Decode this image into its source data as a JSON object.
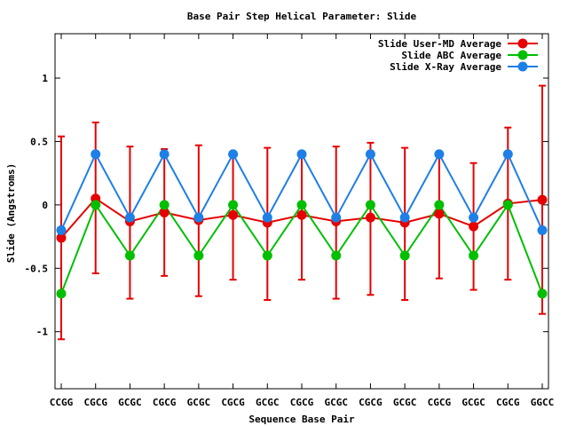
{
  "chart_data": {
    "type": "line",
    "title": "Base Pair Step Helical Parameter: Slide",
    "xlabel": "Sequence Base Pair",
    "ylabel": "Slide (Angstroms)",
    "ylim": [
      -1.45,
      1.35
    ],
    "yticks": [
      1,
      0.5,
      0,
      -0.5,
      -1
    ],
    "ytick_labels": [
      "1",
      "0.5",
      "0",
      "-0.5",
      "-1"
    ],
    "categories": [
      "CCGG",
      "CGCG",
      "GCGC",
      "CGCG",
      "GCGC",
      "CGCG",
      "GCGC",
      "CGCG",
      "GCGC",
      "CGCG",
      "GCGC",
      "CGCG",
      "GCGC",
      "CGCG",
      "GGCC"
    ],
    "grid": false,
    "legend_position": "top-right",
    "series": [
      {
        "name": "Slide User-MD Average",
        "color": "#e60000",
        "values": [
          -0.26,
          0.05,
          -0.13,
          -0.06,
          -0.12,
          -0.08,
          -0.14,
          -0.08,
          -0.13,
          -0.1,
          -0.14,
          -0.07,
          -0.17,
          0.01,
          0.04
        ],
        "err_low": [
          -1.06,
          -0.54,
          -0.74,
          -0.56,
          -0.72,
          -0.59,
          -0.75,
          -0.59,
          -0.74,
          -0.71,
          -0.75,
          -0.58,
          -0.67,
          -0.59,
          -0.86
        ],
        "err_high": [
          0.54,
          0.65,
          0.46,
          0.44,
          0.47,
          0.41,
          0.45,
          0.41,
          0.46,
          0.49,
          0.45,
          0.41,
          0.33,
          0.61,
          0.94
        ]
      },
      {
        "name": "Slide ABC Average",
        "color": "#00bf00",
        "values": [
          -0.7,
          0.0,
          -0.4,
          0.0,
          -0.4,
          0.0,
          -0.4,
          0.0,
          -0.4,
          0.0,
          -0.4,
          0.0,
          -0.4,
          0.0,
          -0.7
        ]
      },
      {
        "name": "Slide X-Ray Average",
        "color": "#1e7fe6",
        "values": [
          -0.2,
          0.4,
          -0.1,
          0.4,
          -0.1,
          0.4,
          -0.1,
          0.4,
          -0.1,
          0.4,
          -0.1,
          0.4,
          -0.1,
          0.4,
          -0.2
        ]
      }
    ]
  }
}
